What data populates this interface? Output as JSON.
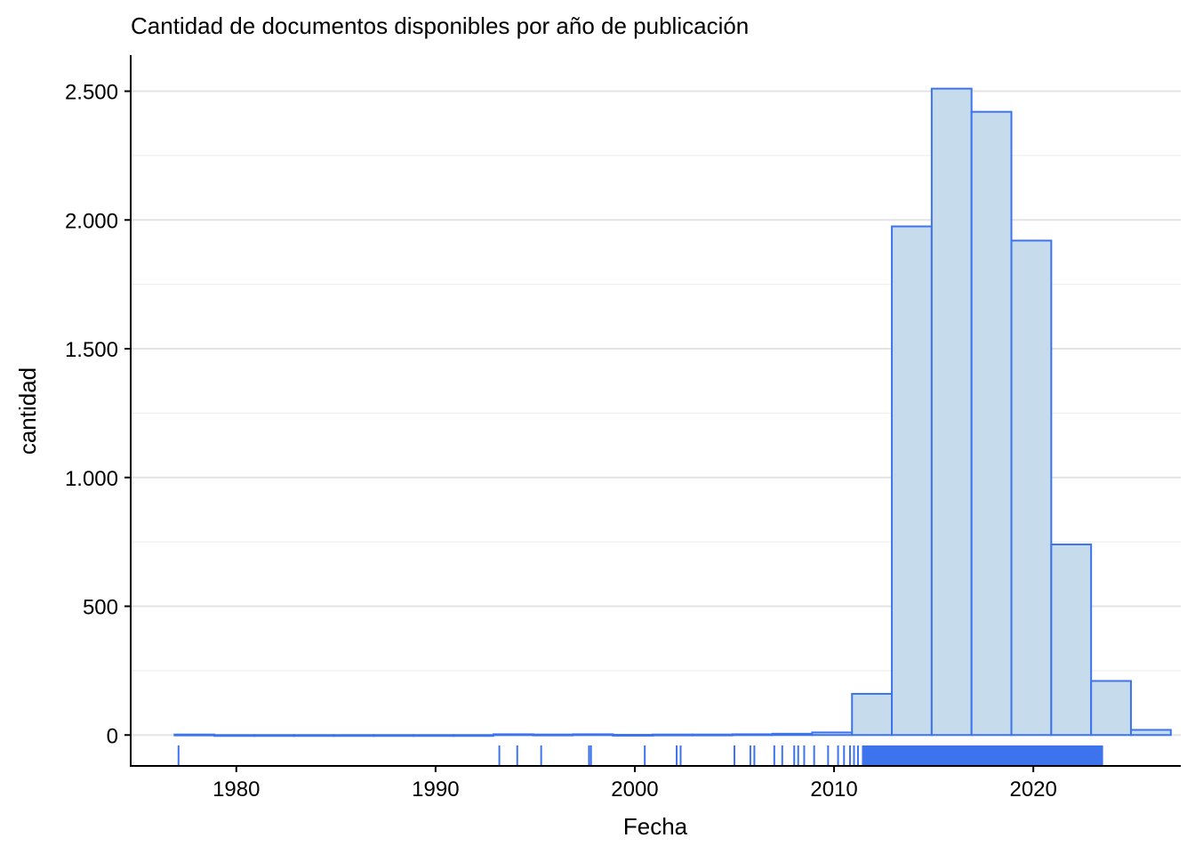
{
  "chart_data": {
    "type": "bar",
    "chart_kind": "histogram",
    "title": "Cantidad de documentos disponibles por año de publicación",
    "xlabel": "Fecha",
    "ylabel": "cantidad",
    "xlim": [
      1974.7,
      2027.4
    ],
    "ylim": [
      -120,
      2640
    ],
    "x_ticks": [
      1980,
      1990,
      2000,
      2010,
      2020
    ],
    "x_tick_labels": [
      "1980",
      "1990",
      "2000",
      "2010",
      "2020"
    ],
    "y_ticks": [
      0,
      500,
      1000,
      1500,
      2000,
      2500
    ],
    "y_tick_labels": [
      "0",
      "500",
      "1.000",
      "1.500",
      "2.000",
      "2.500"
    ],
    "grid": "horizontal",
    "bins": [
      {
        "x0": 1976.9,
        "x1": 1978.9,
        "count": 2
      },
      {
        "x0": 1978.9,
        "x1": 1980.9,
        "count": 0
      },
      {
        "x0": 1980.9,
        "x1": 1982.9,
        "count": 0
      },
      {
        "x0": 1982.9,
        "x1": 1984.9,
        "count": 0
      },
      {
        "x0": 1984.9,
        "x1": 1986.9,
        "count": 0
      },
      {
        "x0": 1986.9,
        "x1": 1988.9,
        "count": 0
      },
      {
        "x0": 1988.9,
        "x1": 1990.9,
        "count": 0
      },
      {
        "x0": 1990.9,
        "x1": 1992.9,
        "count": 0
      },
      {
        "x0": 1992.9,
        "x1": 1994.9,
        "count": 3
      },
      {
        "x0": 1994.9,
        "x1": 1996.9,
        "count": 2
      },
      {
        "x0": 1996.9,
        "x1": 1998.9,
        "count": 3
      },
      {
        "x0": 1998.9,
        "x1": 2000.9,
        "count": 1
      },
      {
        "x0": 2000.9,
        "x1": 2002.9,
        "count": 2
      },
      {
        "x0": 2002.9,
        "x1": 2004.9,
        "count": 2
      },
      {
        "x0": 2004.9,
        "x1": 2006.9,
        "count": 3
      },
      {
        "x0": 2006.9,
        "x1": 2008.9,
        "count": 5
      },
      {
        "x0": 2008.9,
        "x1": 2010.9,
        "count": 10
      },
      {
        "x0": 2010.9,
        "x1": 2012.9,
        "count": 160
      },
      {
        "x0": 2012.9,
        "x1": 2014.9,
        "count": 1975
      },
      {
        "x0": 2014.9,
        "x1": 2016.9,
        "count": 2510
      },
      {
        "x0": 2016.9,
        "x1": 2018.9,
        "count": 2420
      },
      {
        "x0": 2018.9,
        "x1": 2020.9,
        "count": 1920
      },
      {
        "x0": 2020.9,
        "x1": 2022.9,
        "count": 740
      },
      {
        "x0": 2022.9,
        "x1": 2024.9,
        "count": 210
      },
      {
        "x0": 2024.9,
        "x1": 2026.9,
        "count": 20
      }
    ],
    "rug": [
      1977.1,
      1993.2,
      1994.1,
      1995.3,
      1997.7,
      1997.8,
      2000.5,
      2002.1,
      2002.3,
      2005.0,
      2005.8,
      2006.0,
      2007.0,
      2007.4,
      2008.0,
      2008.2,
      2008.5,
      2009.0,
      2009.7,
      2010.2,
      2010.5,
      2010.8,
      2011.0,
      2011.2
    ],
    "rug_dense_range": [
      2011.4,
      2023.5
    ],
    "colors": {
      "bar_fill": "#c6dbec",
      "bar_stroke": "#3d74ee",
      "rug": "#3d74ee",
      "grid_major": "#e3e3e3",
      "grid_minor": "#ececec",
      "axis": "#000000"
    }
  }
}
